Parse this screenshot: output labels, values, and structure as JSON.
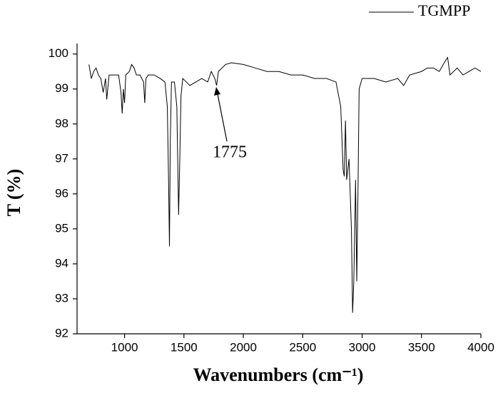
{
  "chart_data": {
    "type": "line",
    "x_label": "Wavenumbers (cm⁻¹)",
    "y_label": "T (%)",
    "annotations": [
      "1775"
    ],
    "x": [
      700,
      720,
      740,
      760,
      780,
      800,
      820,
      840,
      850,
      870,
      900,
      930,
      950,
      970,
      980,
      990,
      1000,
      1010,
      1040,
      1060,
      1080,
      1100,
      1130,
      1160,
      1170,
      1180,
      1200,
      1250,
      1300,
      1340,
      1360,
      1370,
      1378,
      1385,
      1395,
      1420,
      1440,
      1455,
      1465,
      1475,
      1490,
      1520,
      1550,
      1600,
      1650,
      1700,
      1730,
      1760,
      1775,
      1790,
      1820,
      1850,
      1900,
      2000,
      2100,
      2200,
      2300,
      2400,
      2500,
      2600,
      2700,
      2780,
      2820,
      2840,
      2850,
      2860,
      2870,
      2890,
      2910,
      2920,
      2930,
      2945,
      2955,
      2965,
      2975,
      3000,
      3050,
      3100,
      3200,
      3300,
      3350,
      3400,
      3500,
      3550,
      3600,
      3650,
      3700,
      3720,
      3740,
      3800,
      3850,
      3900,
      3950,
      4000
    ],
    "series": [
      {
        "name": "TGMPP",
        "color": "#000000",
        "values": [
          99.7,
          99.3,
          99.5,
          99.6,
          99.4,
          99.3,
          98.9,
          99.3,
          98.7,
          99.4,
          99.4,
          99.4,
          99.4,
          98.9,
          98.3,
          99.0,
          98.6,
          99.4,
          99.5,
          99.7,
          99.6,
          99.4,
          99.4,
          99.2,
          98.6,
          99.3,
          99.4,
          99.4,
          99.3,
          99.2,
          98.5,
          96.5,
          94.5,
          97.5,
          99.2,
          99.2,
          98.5,
          95.4,
          97.0,
          98.8,
          99.3,
          99.2,
          99.1,
          99.2,
          99.3,
          99.2,
          99.5,
          99.3,
          99.1,
          99.5,
          99.6,
          99.7,
          99.75,
          99.7,
          99.6,
          99.5,
          99.5,
          99.4,
          99.4,
          99.3,
          99.3,
          99.2,
          98.5,
          96.7,
          96.5,
          98.1,
          96.4,
          97.0,
          95.0,
          92.6,
          93.5,
          96.4,
          93.5,
          96.0,
          99.0,
          99.3,
          99.3,
          99.3,
          99.2,
          99.3,
          99.1,
          99.4,
          99.5,
          99.6,
          99.6,
          99.5,
          99.8,
          99.9,
          99.4,
          99.6,
          99.4,
          99.5,
          99.6,
          99.5
        ]
      }
    ],
    "xlim": [
      600,
      4000
    ],
    "ylim": [
      92,
      100.3
    ],
    "xticks": [
      1000,
      1500,
      2000,
      2500,
      3000,
      3500,
      4000
    ],
    "yticks": [
      92,
      93,
      94,
      95,
      96,
      97,
      98,
      99,
      100
    ],
    "legend": "top-right",
    "grid": false
  }
}
